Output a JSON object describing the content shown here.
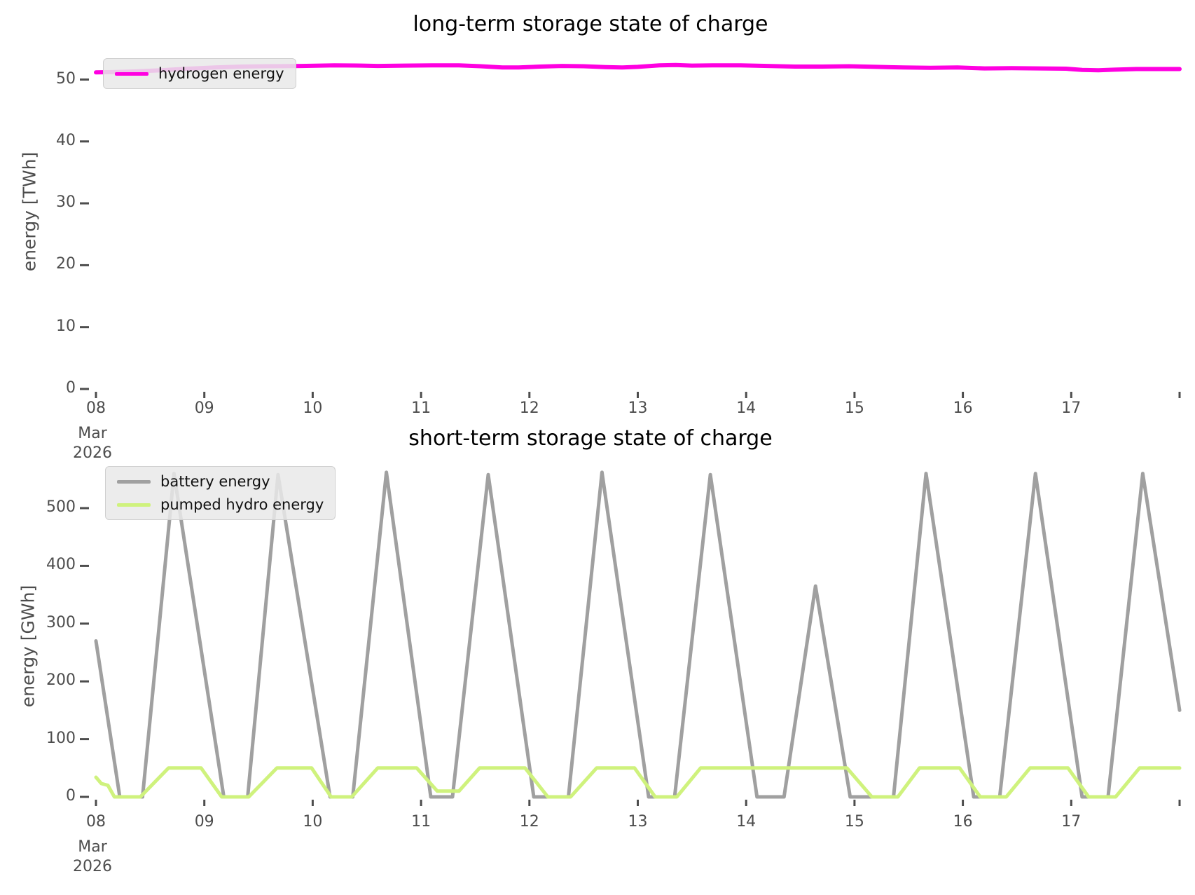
{
  "figure": {
    "background": "#ffffff",
    "text_color": "#4d4d4d"
  },
  "chart_data": [
    {
      "type": "line",
      "title": "long-term storage state of charge",
      "ylabel": "energy [TWh]",
      "xlabel": "",
      "xlim": [
        8,
        18
      ],
      "ylim": [
        0,
        54.7
      ],
      "grid": false,
      "x_unit": "day of March 2026",
      "yticks": [
        0,
        10,
        20,
        30,
        40,
        50
      ],
      "xticks": [
        {
          "pos": 8,
          "label": "08",
          "sub": [
            "Mar",
            "2026"
          ]
        },
        {
          "pos": 9,
          "label": "09"
        },
        {
          "pos": 10,
          "label": "10"
        },
        {
          "pos": 11,
          "label": "11"
        },
        {
          "pos": 12,
          "label": "12"
        },
        {
          "pos": 13,
          "label": "13"
        },
        {
          "pos": 14,
          "label": "14"
        },
        {
          "pos": 15,
          "label": "15"
        },
        {
          "pos": 16,
          "label": "16"
        },
        {
          "pos": 17,
          "label": "17"
        },
        {
          "pos": 18,
          "label": ""
        }
      ],
      "legend": {
        "position": "upper-left",
        "entries": [
          {
            "label": "hydrogen energy",
            "color": "#ff00e1"
          }
        ]
      },
      "series": [
        {
          "name": "hydrogen energy",
          "color": "#ff00e1",
          "unit": "TWh",
          "width": 6,
          "points": [
            [
              8.0,
              51.15
            ],
            [
              8.15,
              51.2
            ],
            [
              8.35,
              51.3
            ],
            [
              8.6,
              51.5
            ],
            [
              8.85,
              51.75
            ],
            [
              9.1,
              51.95
            ],
            [
              9.35,
              52.1
            ],
            [
              9.6,
              52.15
            ],
            [
              9.9,
              52.2
            ],
            [
              10.2,
              52.3
            ],
            [
              10.45,
              52.25
            ],
            [
              10.6,
              52.2
            ],
            [
              10.85,
              52.25
            ],
            [
              11.1,
              52.3
            ],
            [
              11.35,
              52.3
            ],
            [
              11.55,
              52.15
            ],
            [
              11.75,
              51.95
            ],
            [
              11.9,
              51.95
            ],
            [
              12.1,
              52.1
            ],
            [
              12.3,
              52.2
            ],
            [
              12.5,
              52.15
            ],
            [
              12.7,
              52.0
            ],
            [
              12.85,
              51.95
            ],
            [
              13.0,
              52.05
            ],
            [
              13.2,
              52.3
            ],
            [
              13.35,
              52.35
            ],
            [
              13.5,
              52.25
            ],
            [
              13.7,
              52.3
            ],
            [
              13.95,
              52.3
            ],
            [
              14.2,
              52.2
            ],
            [
              14.45,
              52.1
            ],
            [
              14.7,
              52.1
            ],
            [
              14.95,
              52.15
            ],
            [
              15.2,
              52.05
            ],
            [
              15.45,
              51.95
            ],
            [
              15.7,
              51.9
            ],
            [
              15.95,
              51.95
            ],
            [
              16.2,
              51.8
            ],
            [
              16.45,
              51.85
            ],
            [
              16.7,
              51.8
            ],
            [
              16.95,
              51.75
            ],
            [
              17.1,
              51.55
            ],
            [
              17.25,
              51.5
            ],
            [
              17.4,
              51.6
            ],
            [
              17.6,
              51.7
            ],
            [
              17.8,
              51.7
            ],
            [
              18.0,
              51.7
            ]
          ]
        }
      ]
    },
    {
      "type": "line",
      "title": "short-term storage state of charge",
      "ylabel": "energy [GWh]",
      "xlabel": "",
      "xlim": [
        8,
        18
      ],
      "ylim": [
        0,
        585
      ],
      "grid": false,
      "x_unit": "day of March 2026",
      "yticks": [
        0,
        100,
        200,
        300,
        400,
        500
      ],
      "xticks": [
        {
          "pos": 8,
          "label": "08",
          "sub": [
            "Mar",
            "2026"
          ]
        },
        {
          "pos": 9,
          "label": "09"
        },
        {
          "pos": 10,
          "label": "10"
        },
        {
          "pos": 11,
          "label": "11"
        },
        {
          "pos": 12,
          "label": "12"
        },
        {
          "pos": 13,
          "label": "13"
        },
        {
          "pos": 14,
          "label": "14"
        },
        {
          "pos": 15,
          "label": "15"
        },
        {
          "pos": 16,
          "label": "16"
        },
        {
          "pos": 17,
          "label": "17"
        },
        {
          "pos": 18,
          "label": ""
        }
      ],
      "legend": {
        "position": "upper-left",
        "entries": [
          {
            "label": "battery energy",
            "color": "#a0a0a0"
          },
          {
            "label": "pumped hydro energy",
            "color": "#cff27d"
          }
        ]
      },
      "series": [
        {
          "name": "battery energy",
          "color": "#a0a0a0",
          "unit": "GWh",
          "width": 5,
          "points": [
            [
              8.0,
              270
            ],
            [
              8.22,
              0
            ],
            [
              8.43,
              0
            ],
            [
              8.72,
              560
            ],
            [
              9.18,
              0
            ],
            [
              9.4,
              0
            ],
            [
              9.68,
              558
            ],
            [
              10.16,
              0
            ],
            [
              10.37,
              0
            ],
            [
              10.68,
              562
            ],
            [
              11.09,
              0
            ],
            [
              11.29,
              0
            ],
            [
              11.62,
              558
            ],
            [
              12.04,
              0
            ],
            [
              12.36,
              0
            ],
            [
              12.67,
              562
            ],
            [
              13.1,
              0
            ],
            [
              13.34,
              0
            ],
            [
              13.67,
              558
            ],
            [
              14.1,
              0
            ],
            [
              14.35,
              0
            ],
            [
              14.64,
              365
            ],
            [
              14.96,
              0
            ],
            [
              15.36,
              0
            ],
            [
              15.66,
              560
            ],
            [
              16.1,
              0
            ],
            [
              16.34,
              0
            ],
            [
              16.67,
              560
            ],
            [
              17.1,
              0
            ],
            [
              17.34,
              0
            ],
            [
              17.66,
              560
            ],
            [
              18.0,
              150
            ]
          ]
        },
        {
          "name": "pumped hydro energy",
          "color": "#cff27d",
          "unit": "GWh",
          "width": 5,
          "points": [
            [
              8.0,
              34
            ],
            [
              8.05,
              23
            ],
            [
              8.11,
              20
            ],
            [
              8.17,
              0
            ],
            [
              8.41,
              0
            ],
            [
              8.67,
              50
            ],
            [
              8.97,
              50
            ],
            [
              9.16,
              0
            ],
            [
              9.41,
              0
            ],
            [
              9.67,
              50
            ],
            [
              9.99,
              50
            ],
            [
              10.17,
              0
            ],
            [
              10.36,
              0
            ],
            [
              10.6,
              50
            ],
            [
              10.96,
              50
            ],
            [
              11.15,
              10
            ],
            [
              11.35,
              10
            ],
            [
              11.54,
              50
            ],
            [
              11.96,
              50
            ],
            [
              12.17,
              0
            ],
            [
              12.38,
              0
            ],
            [
              12.62,
              50
            ],
            [
              12.97,
              50
            ],
            [
              13.16,
              0
            ],
            [
              13.36,
              0
            ],
            [
              13.58,
              50
            ],
            [
              14.93,
              50
            ],
            [
              15.16,
              0
            ],
            [
              15.4,
              0
            ],
            [
              15.6,
              50
            ],
            [
              15.97,
              50
            ],
            [
              16.16,
              0
            ],
            [
              16.4,
              0
            ],
            [
              16.62,
              50
            ],
            [
              16.97,
              50
            ],
            [
              17.16,
              0
            ],
            [
              17.41,
              0
            ],
            [
              17.63,
              50
            ],
            [
              18.0,
              50
            ]
          ]
        }
      ]
    }
  ]
}
